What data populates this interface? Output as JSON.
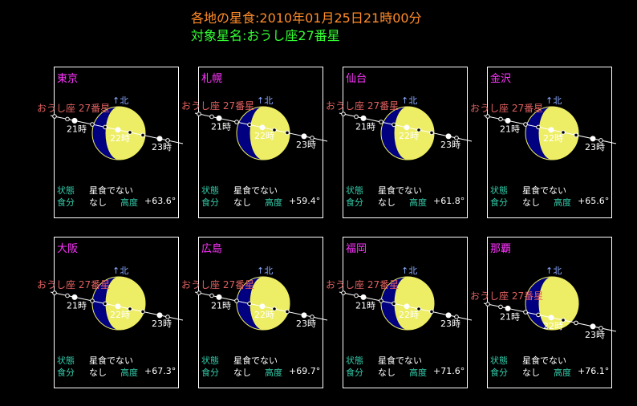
{
  "header": {
    "title": "各地の星食:2010年01月25日21時00分",
    "target": "対象星名:おうし座27番星"
  },
  "labels": {
    "state": "状態",
    "fraction": "食分",
    "altitude": "高度",
    "north": "↑北",
    "star": "おうし座 27番星",
    "h21": "21時",
    "h22": "22時",
    "h23": "23時"
  },
  "colors": {
    "moon_lit": "#eeee66",
    "moon_dark": "#000080",
    "name": "#ff33ff",
    "title": "#ff8c28",
    "target": "#33ff33",
    "star_label": "#e06060",
    "north": "#88aaff"
  },
  "panels": [
    {
      "city": "東京",
      "state": "星食でない",
      "fraction": "なし",
      "altitude": "+63.6°"
    },
    {
      "city": "札幌",
      "state": "星食でない",
      "fraction": "なし",
      "altitude": "+59.4°"
    },
    {
      "city": "仙台",
      "state": "星食でない",
      "fraction": "なし",
      "altitude": "+61.8°"
    },
    {
      "city": "金沢",
      "state": "星食でない",
      "fraction": "なし",
      "altitude": "+65.6°"
    },
    {
      "city": "大阪",
      "state": "星食でない",
      "fraction": "なし",
      "altitude": "+67.3°"
    },
    {
      "city": "広島",
      "state": "星食でない",
      "fraction": "なし",
      "altitude": "+69.7°"
    },
    {
      "city": "福岡",
      "state": "星食でない",
      "fraction": "なし",
      "altitude": "+71.6°"
    },
    {
      "city": "那覇",
      "state": "星食でない",
      "fraction": "なし",
      "altitude": "+76.1°"
    }
  ]
}
